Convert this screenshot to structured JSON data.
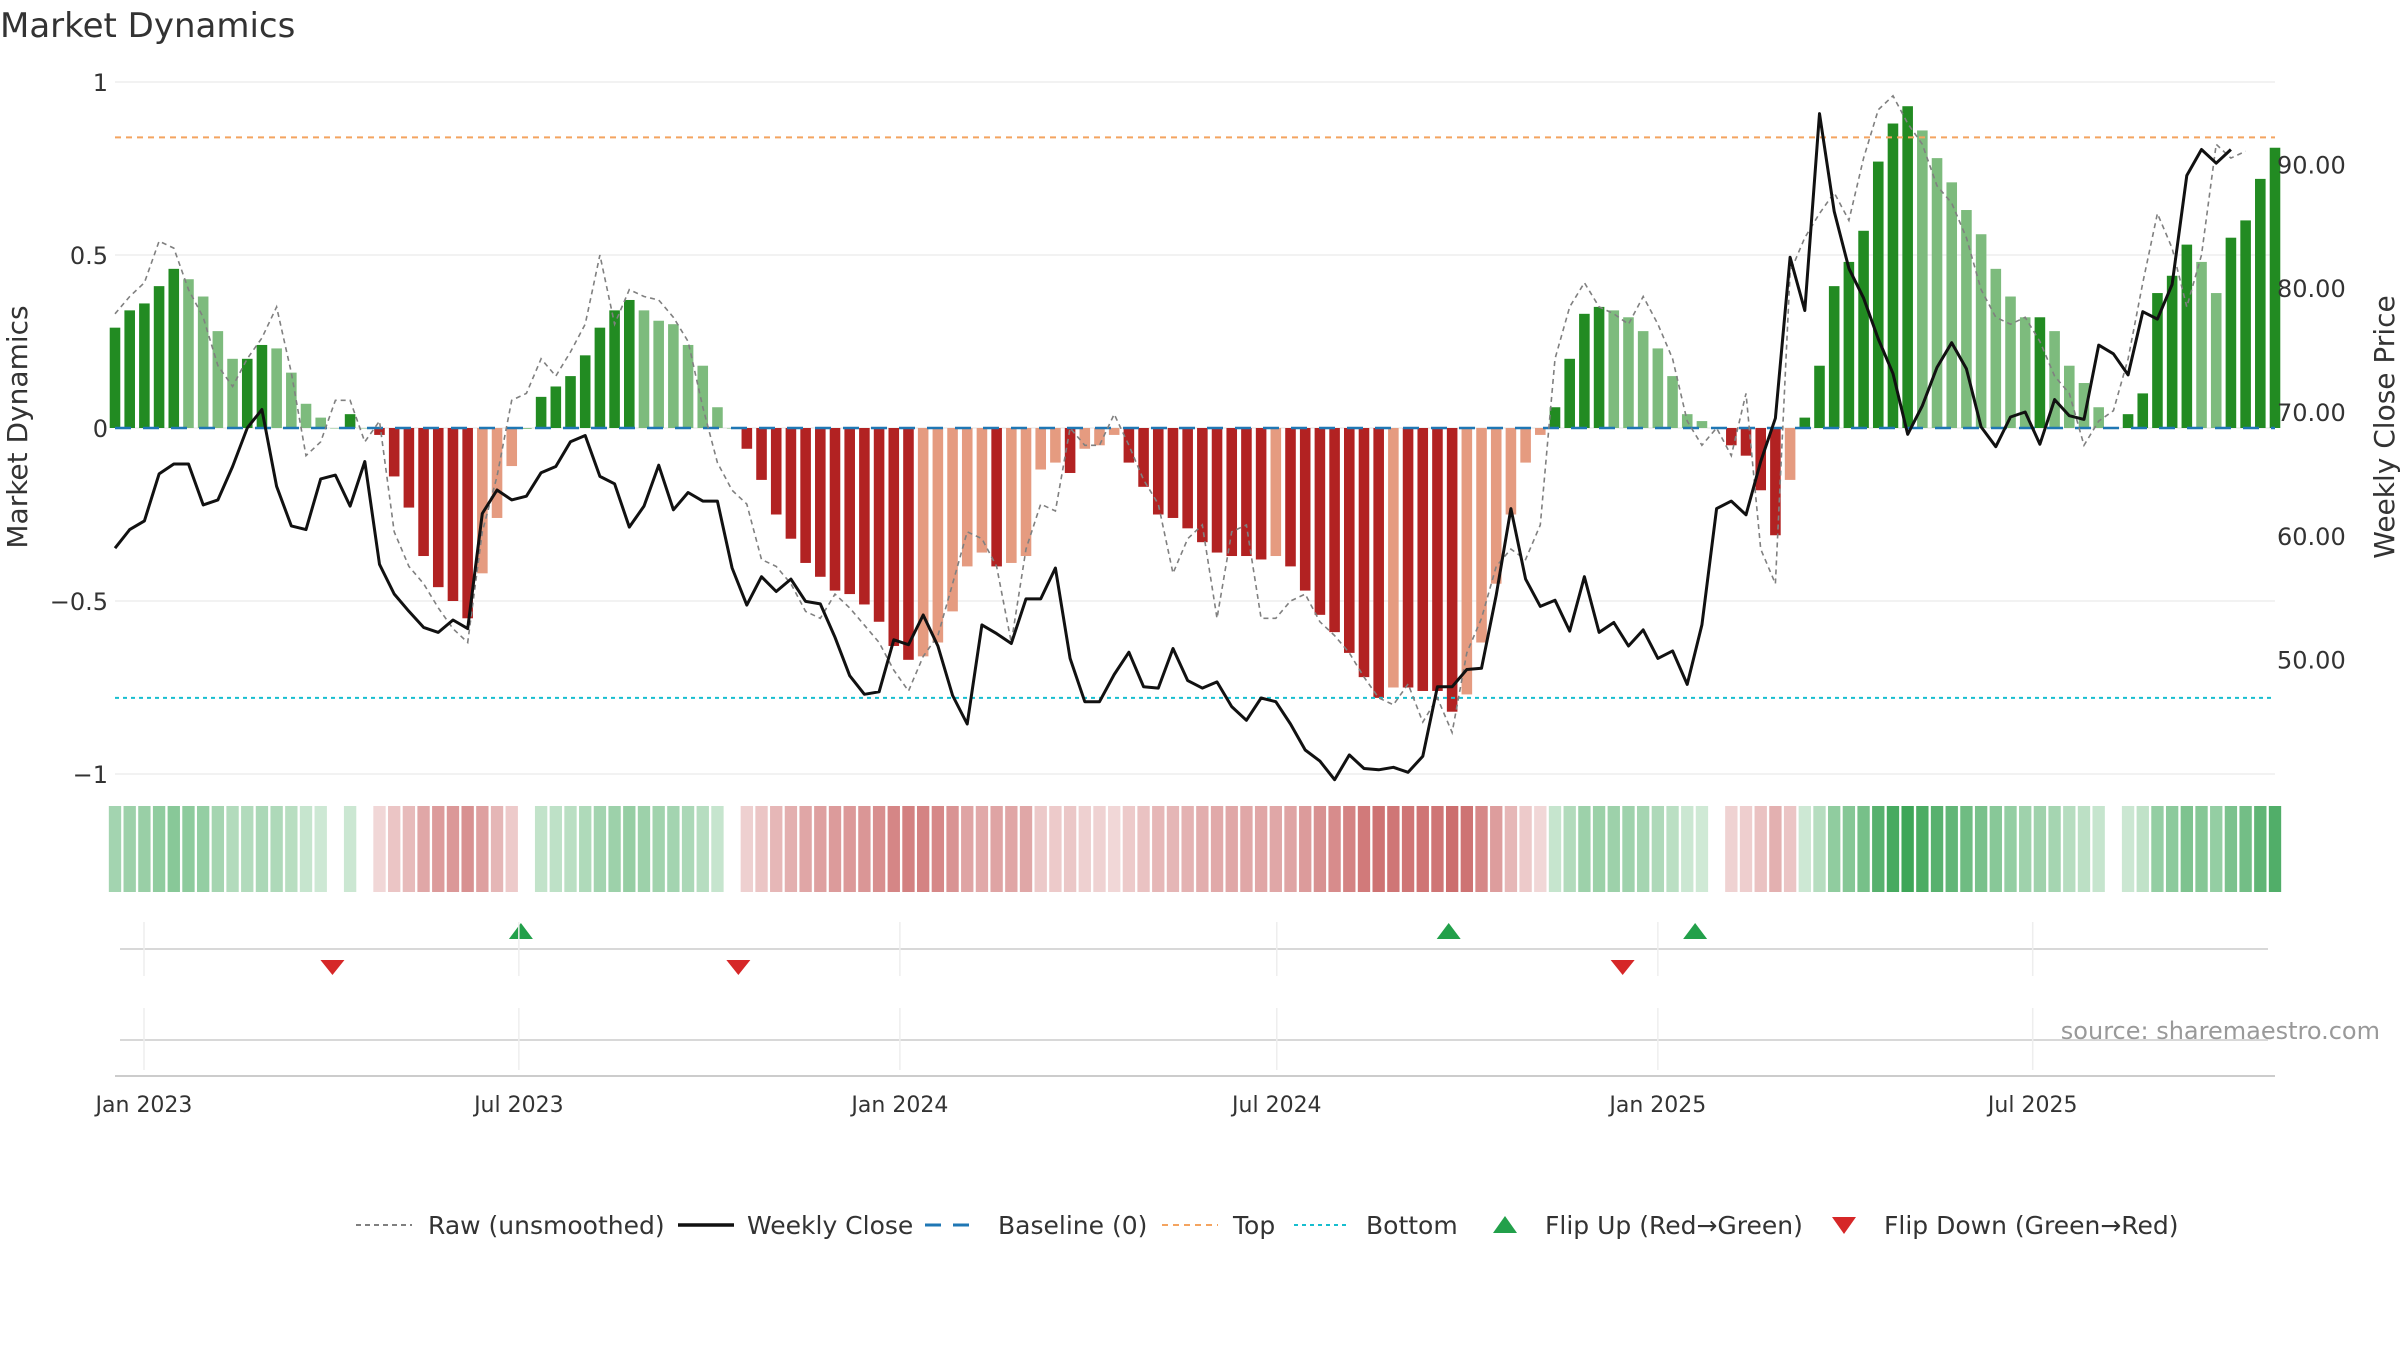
{
  "chart_data": {
    "type": "bar",
    "title": "Market Dynamics",
    "ylabel_left": "Market Dynamics",
    "ylabel_right": "Weekly Close Price",
    "source": "source: sharemaestro.com",
    "ylim_left": [
      -1.1,
      1.1
    ],
    "ylim_right": [
      40,
      98
    ],
    "left_ticks": [
      {
        "value": 1,
        "label": "1"
      },
      {
        "value": 0.5,
        "label": "0.5"
      },
      {
        "value": 0,
        "label": "0"
      },
      {
        "value": -0.5,
        "label": "−0.5"
      },
      {
        "value": -1,
        "label": "−1"
      }
    ],
    "right_ticks": [
      {
        "value": 90,
        "label": "90.00"
      },
      {
        "value": 80,
        "label": "80.00"
      },
      {
        "value": 70,
        "label": "70.00"
      },
      {
        "value": 60,
        "label": "60.00"
      },
      {
        "value": 50,
        "label": "50.00"
      }
    ],
    "x_ticks": [
      {
        "date": "2023-01-01",
        "label": "Jan 2023"
      },
      {
        "date": "2023-07-01",
        "label": "Jul 2023"
      },
      {
        "date": "2024-01-01",
        "label": "Jan 2024"
      },
      {
        "date": "2024-07-01",
        "label": "Jul 2024"
      },
      {
        "date": "2025-01-01",
        "label": "Jan 2025"
      },
      {
        "date": "2025-07-01",
        "label": "Jul 2025"
      }
    ],
    "top_level": 0.84,
    "bottom_level": -0.78,
    "baseline": 0,
    "start_date": "2022-12-18",
    "end_date": "2025-10-26",
    "bars": [
      0.29,
      0.34,
      0.36,
      0.41,
      0.46,
      0.43,
      0.38,
      0.28,
      0.2,
      0.2,
      0.24,
      0.23,
      0.16,
      0.07,
      0.03,
      0.0,
      0.04,
      0.0,
      -0.02,
      -0.14,
      -0.23,
      -0.37,
      -0.46,
      -0.5,
      -0.55,
      -0.42,
      -0.26,
      -0.11,
      0.0,
      0.09,
      0.12,
      0.15,
      0.21,
      0.29,
      0.34,
      0.37,
      0.34,
      0.31,
      0.3,
      0.24,
      0.18,
      0.06,
      0.0,
      -0.06,
      -0.15,
      -0.25,
      -0.32,
      -0.39,
      -0.43,
      -0.47,
      -0.48,
      -0.51,
      -0.56,
      -0.63,
      -0.67,
      -0.66,
      -0.62,
      -0.53,
      -0.4,
      -0.36,
      -0.4,
      -0.39,
      -0.37,
      -0.12,
      -0.1,
      -0.13,
      -0.06,
      -0.05,
      -0.02,
      -0.1,
      -0.17,
      -0.25,
      -0.26,
      -0.29,
      -0.33,
      -0.36,
      -0.37,
      -0.37,
      -0.38,
      -0.37,
      -0.4,
      -0.47,
      -0.54,
      -0.59,
      -0.65,
      -0.72,
      -0.78,
      -0.75,
      -0.75,
      -0.76,
      -0.76,
      -0.82,
      -0.77,
      -0.62,
      -0.45,
      -0.25,
      -0.1,
      -0.02,
      0.06,
      0.2,
      0.33,
      0.35,
      0.34,
      0.32,
      0.28,
      0.23,
      0.15,
      0.04,
      0.02,
      0.0,
      -0.05,
      -0.08,
      -0.18,
      -0.31,
      -0.15,
      0.03,
      0.18,
      0.41,
      0.48,
      0.57,
      0.77,
      0.88,
      0.93,
      0.86,
      0.78,
      0.71,
      0.63,
      0.56,
      0.46,
      0.38,
      0.32,
      0.32,
      0.28,
      0.18,
      0.13,
      0.06,
      0.0,
      0.04,
      0.1,
      0.39,
      0.44,
      0.53,
      0.48,
      0.39,
      0.55,
      0.6,
      0.72,
      0.81
    ],
    "raw": [
      0.33,
      0.38,
      0.42,
      0.54,
      0.52,
      0.4,
      0.32,
      0.18,
      0.12,
      0.2,
      0.26,
      0.35,
      0.16,
      -0.08,
      -0.04,
      0.08,
      0.08,
      -0.04,
      0.02,
      -0.3,
      -0.4,
      -0.45,
      -0.52,
      -0.58,
      -0.62,
      -0.3,
      -0.14,
      0.08,
      0.1,
      0.2,
      0.15,
      0.22,
      0.3,
      0.5,
      0.3,
      0.4,
      0.38,
      0.37,
      0.32,
      0.25,
      0.06,
      -0.1,
      -0.18,
      -0.22,
      -0.38,
      -0.4,
      -0.45,
      -0.53,
      -0.55,
      -0.48,
      -0.52,
      -0.57,
      -0.62,
      -0.7,
      -0.76,
      -0.66,
      -0.6,
      -0.45,
      -0.3,
      -0.32,
      -0.4,
      -0.62,
      -0.35,
      -0.22,
      -0.24,
      0.0,
      -0.05,
      -0.05,
      0.04,
      -0.05,
      -0.15,
      -0.22,
      -0.42,
      -0.32,
      -0.28,
      -0.55,
      -0.3,
      -0.28,
      -0.55,
      -0.55,
      -0.5,
      -0.48,
      -0.56,
      -0.6,
      -0.65,
      -0.72,
      -0.78,
      -0.8,
      -0.74,
      -0.85,
      -0.78,
      -0.88,
      -0.65,
      -0.55,
      -0.4,
      -0.35,
      -0.38,
      -0.28,
      0.2,
      0.35,
      0.42,
      0.35,
      0.33,
      0.3,
      0.38,
      0.3,
      0.2,
      0.02,
      -0.05,
      0.0,
      -0.08,
      0.1,
      -0.35,
      -0.45,
      0.45,
      0.55,
      0.62,
      0.68,
      0.6,
      0.78,
      0.92,
      0.96,
      0.88,
      0.82,
      0.7,
      0.65,
      0.55,
      0.4,
      0.32,
      0.3,
      0.32,
      0.25,
      0.15,
      0.1,
      -0.05,
      0.02,
      0.05,
      0.2,
      0.42,
      0.62,
      0.52,
      0.35,
      0.5,
      0.82,
      0.78,
      0.8
    ],
    "close": [
      59,
      60.5,
      61.2,
      65,
      65.8,
      65.8,
      62.5,
      62.9,
      65.6,
      68.7,
      70.2,
      64,
      60.8,
      60.5,
      64.6,
      64.9,
      62.4,
      66,
      57.7,
      55.3,
      53.9,
      52.6,
      52.2,
      53.2,
      52.5,
      61.8,
      63.7,
      62.9,
      63.2,
      65.1,
      65.6,
      67.6,
      68.1,
      64.8,
      64.2,
      60.7,
      62.4,
      65.7,
      62.1,
      63.5,
      62.8,
      62.8,
      57.4,
      54.4,
      56.7,
      55.5,
      56.5,
      54.7,
      54.5,
      51.8,
      48.7,
      47.2,
      47.4,
      51.6,
      51.2,
      53.6,
      51.1,
      47.1,
      44.8,
      52.8,
      52.1,
      51.3,
      54.9,
      54.9,
      57.4,
      50.1,
      46.6,
      46.6,
      48.8,
      50.6,
      47.8,
      47.7,
      50.9,
      48.3,
      47.7,
      48.2,
      46.2,
      45.1,
      46.9,
      46.6,
      44.8,
      42.7,
      41.8,
      40.3,
      42.3,
      41.2,
      41.1,
      41.3,
      40.9,
      42.2,
      47.8,
      47.8,
      49.2,
      49.3,
      55.2,
      62.2,
      56.5,
      54.3,
      54.8,
      52.3,
      56.7,
      52.2,
      53,
      51.1,
      52.4,
      50.1,
      50.7,
      48,
      52.8,
      62.2,
      62.8,
      61.7,
      66,
      69.5,
      82.5,
      78.2,
      94.1,
      86.2,
      81.6,
      79.2,
      75.9,
      73.1,
      68.2,
      70.5,
      73.6,
      75.6,
      73.5,
      68.8,
      67.2,
      69.6,
      70,
      67.4,
      71,
      69.7,
      69.4,
      75.4,
      74.7,
      73,
      78.1,
      77.5,
      80.3,
      89.1,
      91.2,
      90.1,
      91.2
    ]
  },
  "flips": {
    "up_dates": [
      "2023-07-02",
      "2024-09-22",
      "2025-01-19"
    ],
    "down_dates": [
      "2023-04-02",
      "2023-10-15",
      "2024-12-15"
    ]
  },
  "legend": [
    {
      "label": "Raw (unsmoothed)"
    },
    {
      "label": "Weekly Close"
    },
    {
      "label": "Baseline (0)"
    },
    {
      "label": "Top"
    },
    {
      "label": "Bottom"
    },
    {
      "label": "Flip Up (Red→Green)"
    },
    {
      "label": "Flip Down (Green→Red)"
    }
  ],
  "colors": {
    "bar_green_strong": "#228b22",
    "bar_green_light": "#7dbb7d",
    "bar_red_strong": "#b22222",
    "bar_red_light": "#e59b80",
    "close_line": "#111111",
    "raw_line": "#808080",
    "baseline": "#1f77b4",
    "top": "#f4a460",
    "bottom": "#17becf",
    "flip_up": "#22a04a",
    "flip_down": "#d62728",
    "heat_green": "#2e9e4a",
    "heat_red": "#c25050",
    "grid": "#e6e6e6"
  }
}
